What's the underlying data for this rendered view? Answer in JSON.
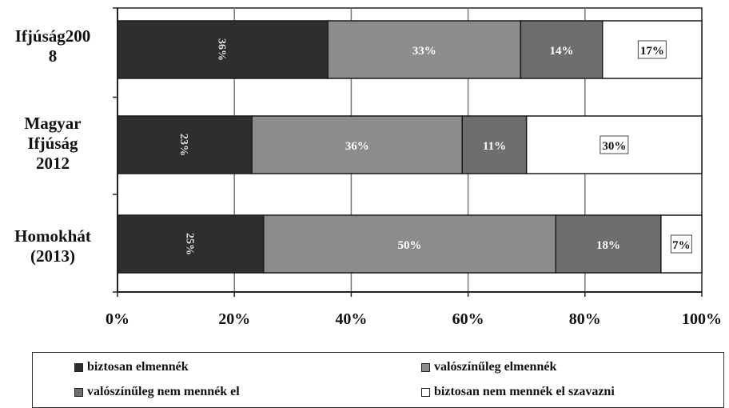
{
  "chart_data": {
    "type": "bar",
    "orientation": "horizontal",
    "stacked": true,
    "categories": [
      [
        "Ifjúság200",
        "8"
      ],
      [
        "Magyar",
        "Ifjúság",
        "2012"
      ],
      [
        "Homokhát",
        "(2013)"
      ]
    ],
    "series": [
      {
        "name": "biztosan elmennék",
        "values": [
          36,
          23,
          25
        ],
        "labels": [
          "36%",
          "23%",
          "25%"
        ],
        "color": "#2e2e2e",
        "label_color": "#e0e0e0",
        "label_rotated": true
      },
      {
        "name": "valószínűleg elmennék",
        "values": [
          33,
          36,
          50
        ],
        "labels": [
          "33%",
          "36%",
          "50%"
        ],
        "color": "#8c8c8c",
        "label_color": "#ffffff",
        "label_rotated": false
      },
      {
        "name": "valószínűleg nem mennék el",
        "values": [
          14,
          11,
          18
        ],
        "labels": [
          "14%",
          "11%",
          "18%"
        ],
        "color": "#6e6e6e",
        "label_color": "#ffffff",
        "label_rotated": false
      },
      {
        "name": "biztosan nem mennék el szavazni",
        "values": [
          17,
          30,
          7
        ],
        "labels": [
          "17%",
          "30%",
          "7%"
        ],
        "color": "#ffffff",
        "label_color": "#111111",
        "label_rotated": false
      }
    ],
    "xlim": [
      0,
      100
    ],
    "xticks": [
      "0%",
      "20%",
      "40%",
      "60%",
      "80%",
      "100%"
    ],
    "grid": true,
    "legend_position": "bottom",
    "title": "",
    "xlabel": "",
    "ylabel": ""
  }
}
